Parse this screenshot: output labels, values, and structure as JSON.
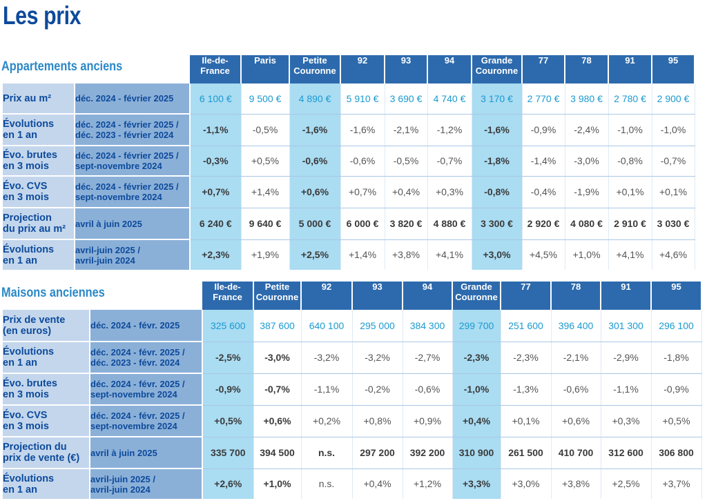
{
  "title": "Les prix",
  "apartments": {
    "title": "Appartements anciens",
    "headers": [
      {
        "l1": "Ile-de-",
        "l2": "France"
      },
      {
        "l1": "Paris",
        "l2": ""
      },
      {
        "l1": "Petite",
        "l2": "Couronne"
      },
      {
        "l1": "92",
        "l2": ""
      },
      {
        "l1": "93",
        "l2": ""
      },
      {
        "l1": "94",
        "l2": ""
      },
      {
        "l1": "Grande",
        "l2": "Couronne"
      },
      {
        "l1": "77",
        "l2": ""
      },
      {
        "l1": "78",
        "l2": ""
      },
      {
        "l1": "91",
        "l2": ""
      },
      {
        "l1": "95",
        "l2": ""
      }
    ],
    "rows": [
      {
        "label1": "Prix au m²",
        "label2": "",
        "period1": "déc. 2024 - février 2025",
        "period2": "",
        "values": [
          "6 100 €",
          "9 500 €",
          "4 890 €",
          "5 910 €",
          "3 690 €",
          "4 740 €",
          "3 170 €",
          "2 770 €",
          "3 980 €",
          "2 780 €",
          "2 900 €"
        ]
      },
      {
        "label1": "Évolutions",
        "label2": "en 1 an",
        "period1": "déc. 2024 - février 2025 /",
        "period2": "déc. 2023 - février 2024",
        "values": [
          "-1,1%",
          "-0,5%",
          "-1,6%",
          "-1,6%",
          "-2,1%",
          "-1,2%",
          "-1,6%",
          "-0,9%",
          "-2,4%",
          "-1,0%",
          "-1,0%"
        ]
      },
      {
        "label1": "Évo. brutes",
        "label2": "en 3 mois",
        "period1": "déc. 2024 - février 2025 /",
        "period2": "sept-novembre 2024",
        "values": [
          "-0,3%",
          "+0,5%",
          "-0,6%",
          "-0,6%",
          "-0,5%",
          "-0,7%",
          "-1,8%",
          "-1,4%",
          "-3,0%",
          "-0,8%",
          "-0,7%"
        ]
      },
      {
        "label1": "Évo. CVS",
        "label2": "en 3 mois",
        "period1": "déc. 2024 - février 2025 /",
        "period2": "sept-novembre 2024",
        "values": [
          "+0,7%",
          "+1,4%",
          "+0,6%",
          "+0,7%",
          "+0,4%",
          "+0,3%",
          "-0,8%",
          "-0,4%",
          "-1,9%",
          "+0,1%",
          "+0,1%"
        ]
      },
      {
        "label1": "Projection",
        "label2": "du prix au m²",
        "period1": "avril à juin 2025",
        "period2": "",
        "values": [
          "6 240 €",
          "9 640 €",
          "5 000 €",
          "6 000 €",
          "3 820 €",
          "4 880 €",
          "3 300 €",
          "2 920 €",
          "4 080 €",
          "2 910 €",
          "3 030 €"
        ]
      },
      {
        "label1": "Évolutions",
        "label2": "en 1 an",
        "period1": "avril-juin 2025 /",
        "period2": "avril-juin 2024",
        "values": [
          "+2,3%",
          "+1,9%",
          "+2,5%",
          "+1,4%",
          "+3,8%",
          "+4,1%",
          "+3,0%",
          "+4,5%",
          "+1,0%",
          "+4,1%",
          "+4,6%"
        ]
      }
    ]
  },
  "houses": {
    "title": "Maisons anciennes",
    "headers": [
      {
        "l1": "Ile-de-",
        "l2": "France"
      },
      {
        "l1": "Petite",
        "l2": "Couronne"
      },
      {
        "l1": "92",
        "l2": ""
      },
      {
        "l1": "93",
        "l2": ""
      },
      {
        "l1": "94",
        "l2": ""
      },
      {
        "l1": "Grande",
        "l2": "Couronne"
      },
      {
        "l1": "77",
        "l2": ""
      },
      {
        "l1": "78",
        "l2": ""
      },
      {
        "l1": "91",
        "l2": ""
      },
      {
        "l1": "95",
        "l2": ""
      }
    ],
    "rows": [
      {
        "label1": "Prix de vente",
        "label2": "(en euros)",
        "period1": "déc. 2024 - févr. 2025",
        "period2": "",
        "values": [
          "325 600",
          "387 600",
          "640 100",
          "295 000",
          "384 300",
          "299 700",
          "251 600",
          "396 400",
          "301 300",
          "296 100"
        ]
      },
      {
        "label1": "Évolutions",
        "label2": "en 1 an",
        "period1": "déc. 2024 - févr. 2025 /",
        "period2": "déc. 2023 - févr. 2024",
        "values": [
          "-2,5%",
          "-3,0%",
          "-3,2%",
          "-3,2%",
          "-2,7%",
          "-2,3%",
          "-2,3%",
          "-2,1%",
          "-2,9%",
          "-1,8%"
        ]
      },
      {
        "label1": "Évo. brutes",
        "label2": "en 3 mois",
        "period1": "déc. 2024 - févr. 2025 /",
        "period2": "sept-novembre 2024",
        "values": [
          "-0,9%",
          "-0,7%",
          "-1,1%",
          "-0,2%",
          "-0,6%",
          "-1,0%",
          "-1,3%",
          "-0,6%",
          "-1,1%",
          "-0,9%"
        ]
      },
      {
        "label1": "Évo. CVS",
        "label2": "en 3 mois",
        "period1": "déc. 2024 - févr. 2025 /",
        "period2": "sept-novembre 2024",
        "values": [
          "+0,5%",
          "+0,6%",
          "+0,2%",
          "+0,8%",
          "+0,9%",
          "+0,4%",
          "+0,1%",
          "+0,6%",
          "+0,3%",
          "+0,5%"
        ]
      },
      {
        "label1": "Projection du",
        "label2": "prix de vente (€)",
        "period1": "avril à juin 2025",
        "period2": "",
        "values": [
          "335 700",
          "394 500",
          "n.s.",
          "297 200",
          "392 200",
          "310 900",
          "261 500",
          "410 700",
          "312 600",
          "306 800"
        ]
      },
      {
        "label1": "Évolutions",
        "label2": "en 1 an",
        "period1": "avril-juin 2025 /",
        "period2": "avril-juin 2024",
        "values": [
          "+2,6%",
          "+1,0%",
          "n.s.",
          "+0,4%",
          "+1,2%",
          "+3,3%",
          "+3,0%",
          "+3,8%",
          "+2,5%",
          "+3,7%"
        ]
      }
    ]
  }
}
